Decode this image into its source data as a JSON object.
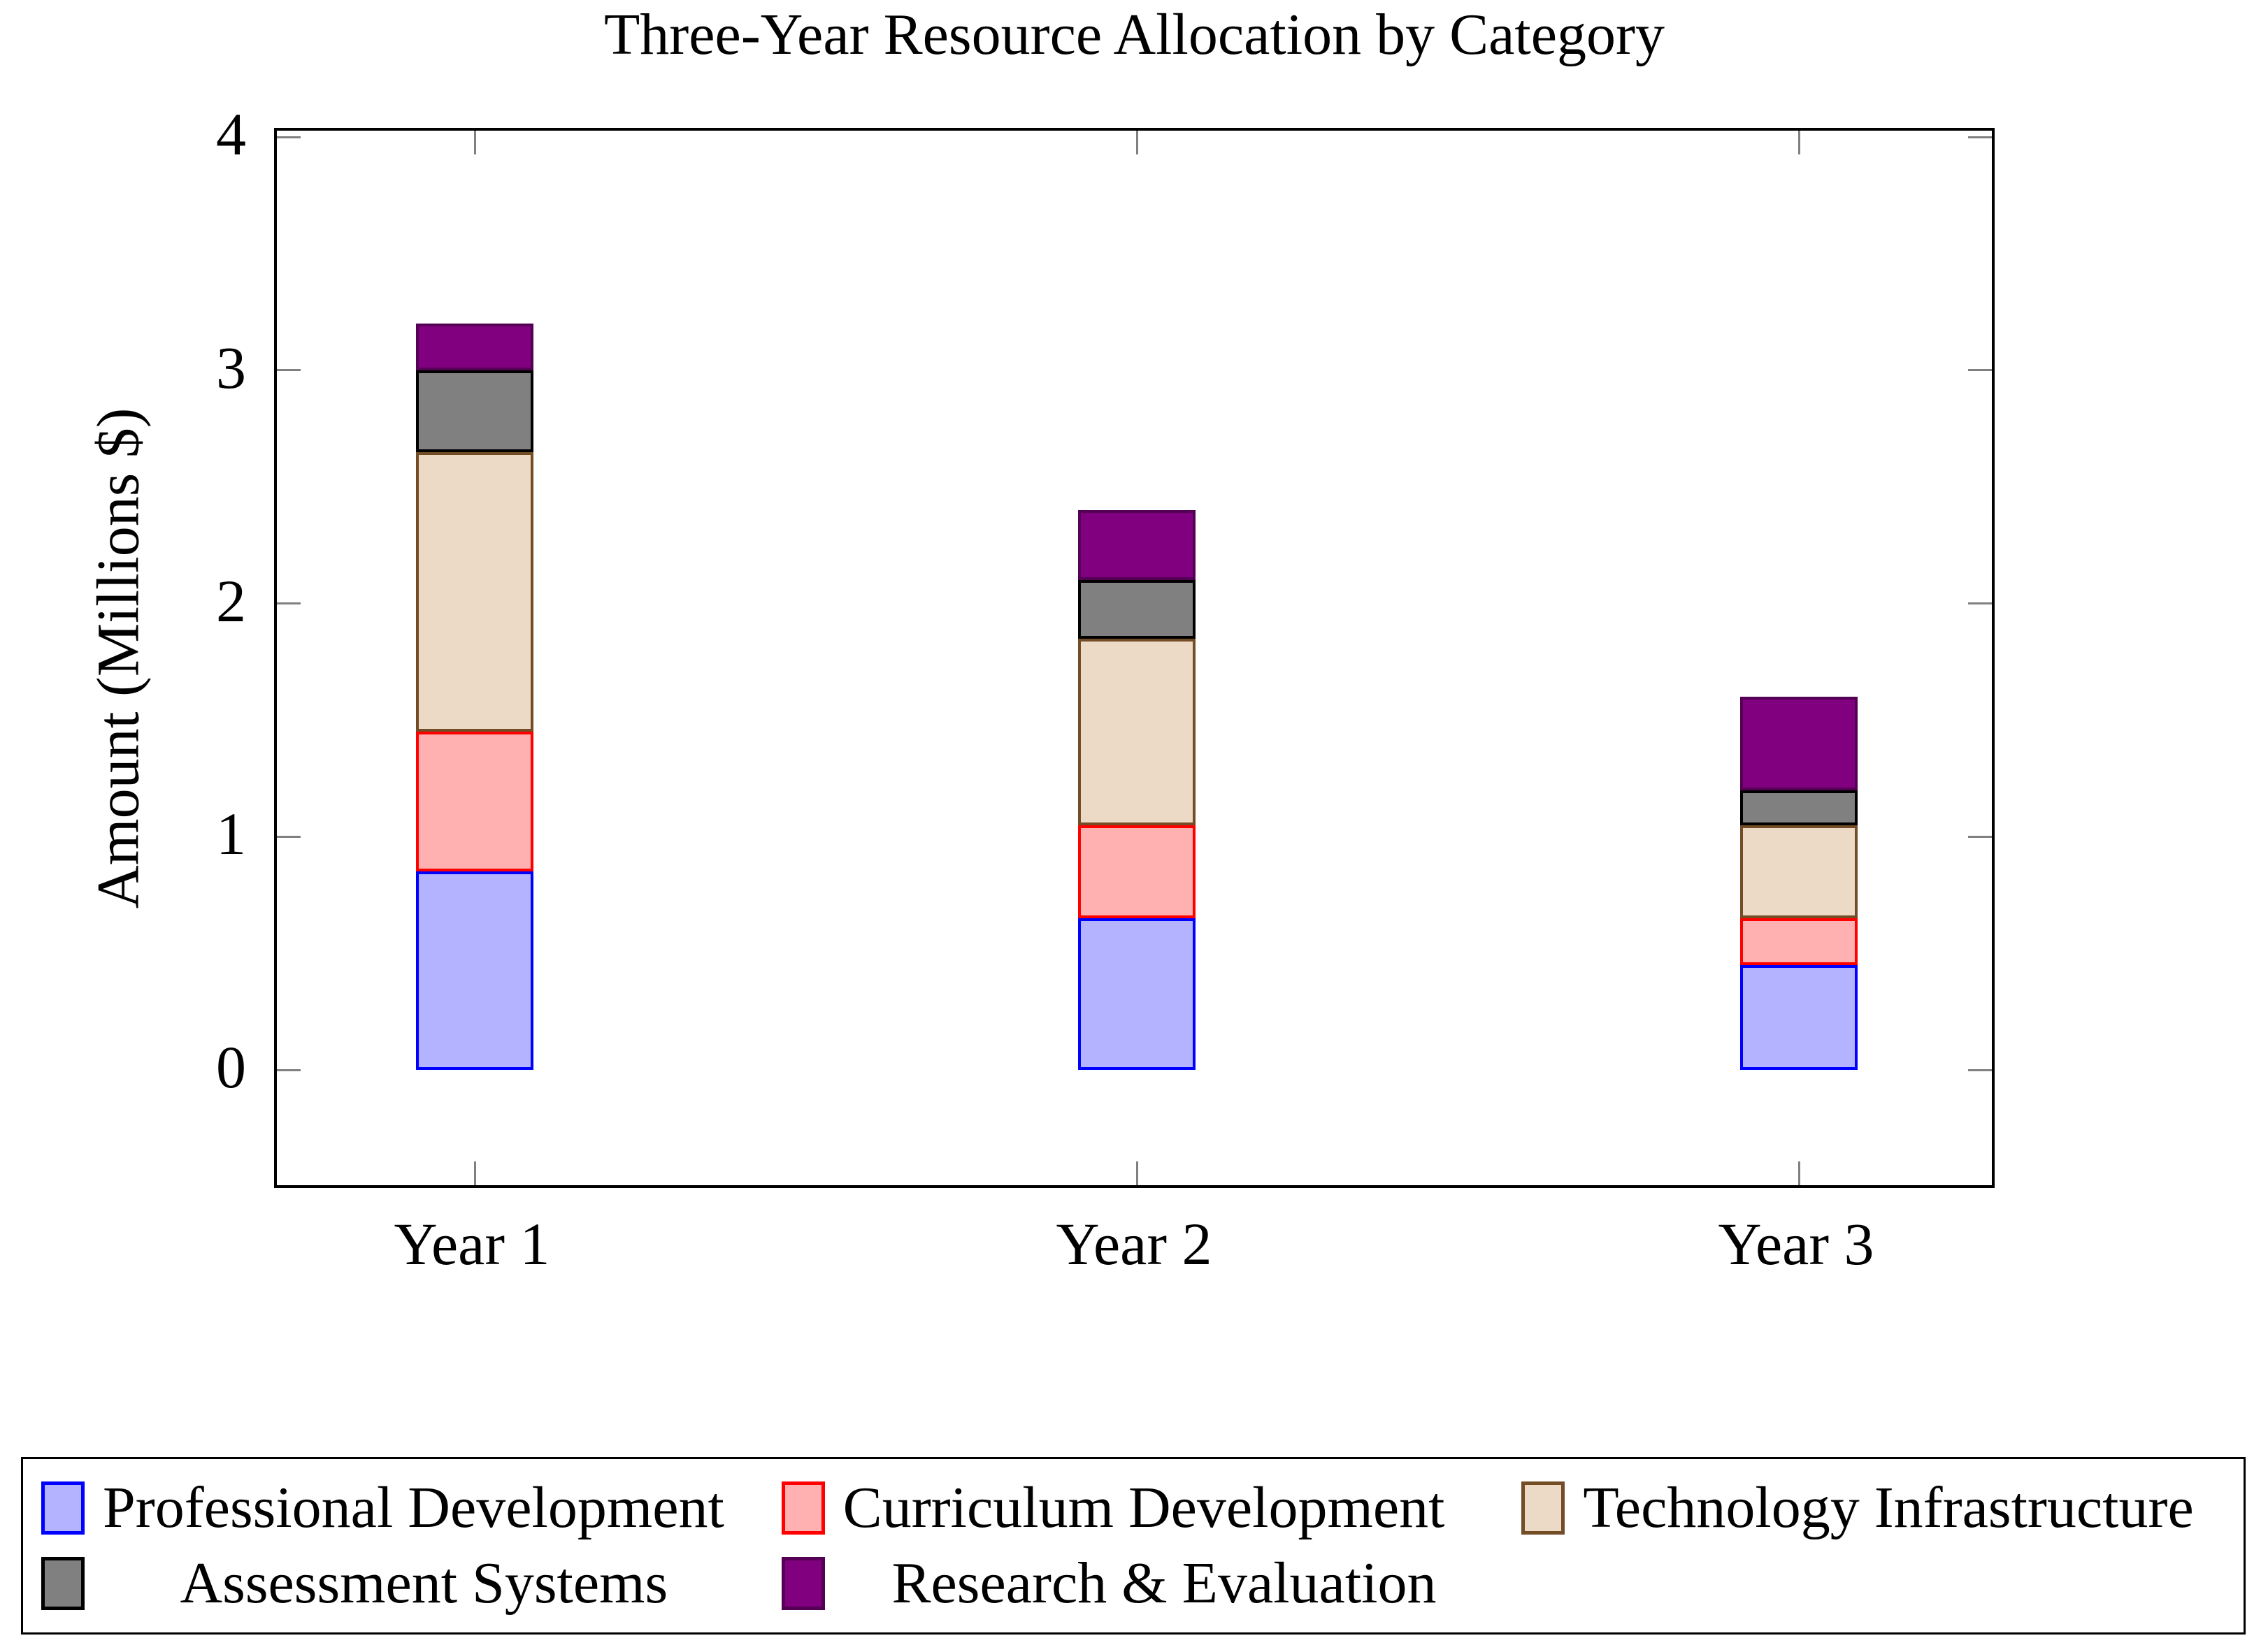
{
  "chart_data": {
    "type": "bar",
    "stacked": true,
    "title": "Three-Year Resource Allocation by Category",
    "ylabel": "Amount (Millions $)",
    "xlabel": "",
    "categories": [
      "Year 1",
      "Year 2",
      "Year 3"
    ],
    "series": [
      {
        "name": "Professional Development",
        "values": [
          0.85,
          0.65,
          0.45
        ],
        "fill": "#B3B3FF",
        "border": "#0000FF"
      },
      {
        "name": "Curriculum Development",
        "values": [
          0.6,
          0.4,
          0.2
        ],
        "fill": "#FFB0B0",
        "border": "#FF0000"
      },
      {
        "name": "Technology Infrastructure",
        "values": [
          1.2,
          0.8,
          0.4
        ],
        "fill": "#ECD9C6",
        "border": "#734D26"
      },
      {
        "name": "Assessment Systems",
        "values": [
          0.35,
          0.25,
          0.15
        ],
        "fill": "#808080",
        "border": "#000000"
      },
      {
        "name": "Research & Evaluation",
        "values": [
          0.2,
          0.3,
          0.4
        ],
        "fill": "#800080",
        "border": "#540054"
      }
    ],
    "stack_totals": [
      3.2,
      2.4,
      1.6
    ],
    "ylim": [
      0,
      4
    ],
    "yticks": [
      "0",
      "1",
      "2",
      "3",
      "4"
    ],
    "grid": false,
    "legend_position": "bottom",
    "legend_rows": [
      [
        0,
        1,
        2
      ],
      [
        3,
        4
      ]
    ],
    "style": {
      "tick_color": "#808080",
      "axis_color": "#000000",
      "background": "#ffffff"
    }
  }
}
